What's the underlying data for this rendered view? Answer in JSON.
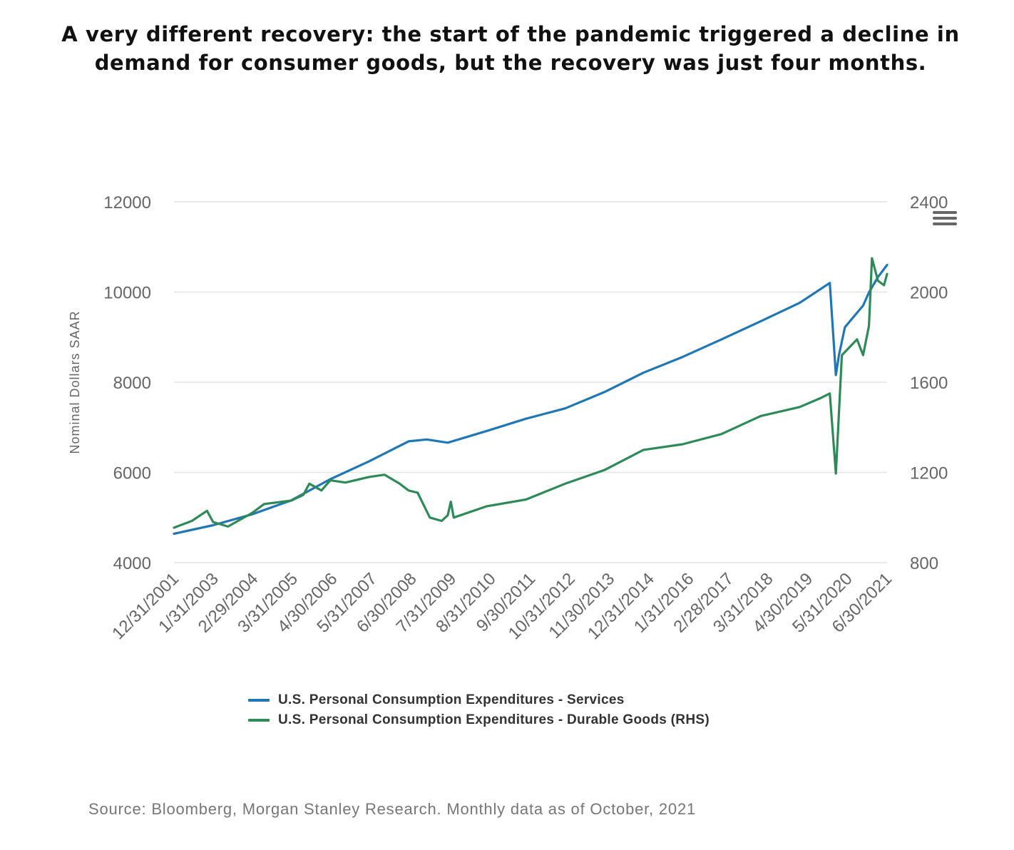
{
  "title_lines": [
    "A very different recovery: the start of the pandemic triggered a decline in",
    "demand for consumer goods, but the recovery was just four months."
  ],
  "source": "Source: Bloomberg, Morgan Stanley Research. Monthly data as of October, 2021",
  "menu_icon": "hamburger-menu-icon",
  "colors": {
    "services": "#1f77b4",
    "durables": "#2e8b57",
    "grid": "#e3e3e3",
    "axis_text": "#666666"
  },
  "chart_data": {
    "type": "line",
    "ylabel": "Nominal Dollars SAAR",
    "y_left": {
      "min": 4000,
      "max": 12000,
      "ticks": [
        4000,
        6000,
        8000,
        10000,
        12000
      ]
    },
    "y_right": {
      "min": 800,
      "max": 2400,
      "ticks": [
        800,
        1200,
        1600,
        2000,
        2400
      ]
    },
    "x_range": [
      "2001-12-31",
      "2021-09-30"
    ],
    "x_ticks": [
      "12/31/2001",
      "1/31/2003",
      "2/29/2004",
      "3/31/2005",
      "4/30/2006",
      "5/31/2007",
      "6/30/2008",
      "7/31/2009",
      "8/31/2010",
      "9/30/2011",
      "10/31/2012",
      "11/30/2013",
      "12/31/2014",
      "1/31/2016",
      "2/28/2017",
      "3/31/2018",
      "4/30/2019",
      "5/31/2020",
      "6/30/2021"
    ],
    "grid": true,
    "legend_position": "bottom",
    "series": [
      {
        "name": "U.S. Personal Consumption Expenditures - Services",
        "axis": "left",
        "points": [
          [
            "2001-12-31",
            4640
          ],
          [
            "2003-01-31",
            4830
          ],
          [
            "2004-02-29",
            5070
          ],
          [
            "2005-03-31",
            5380
          ],
          [
            "2006-04-30",
            5850
          ],
          [
            "2007-05-31",
            6250
          ],
          [
            "2008-06-30",
            6690
          ],
          [
            "2008-12-31",
            6730
          ],
          [
            "2009-07-31",
            6660
          ],
          [
            "2010-08-31",
            6920
          ],
          [
            "2011-09-30",
            7190
          ],
          [
            "2012-10-31",
            7420
          ],
          [
            "2013-11-30",
            7780
          ],
          [
            "2014-12-31",
            8210
          ],
          [
            "2016-01-31",
            8560
          ],
          [
            "2017-02-28",
            8950
          ],
          [
            "2018-03-31",
            9350
          ],
          [
            "2019-04-30",
            9760
          ],
          [
            "2020-02-29",
            10200
          ],
          [
            "2020-04-30",
            8160
          ],
          [
            "2020-05-31",
            8600
          ],
          [
            "2020-07-31",
            9220
          ],
          [
            "2020-12-31",
            9620
          ],
          [
            "2021-01-31",
            9700
          ],
          [
            "2021-03-31",
            9990
          ],
          [
            "2021-06-30",
            10330
          ],
          [
            "2021-09-30",
            10600
          ]
        ]
      },
      {
        "name": "U.S. Personal Consumption Expenditures - Durable Goods (RHS)",
        "axis": "right",
        "points": [
          [
            "2001-12-31",
            955
          ],
          [
            "2002-06-30",
            985
          ],
          [
            "2002-11-30",
            1030
          ],
          [
            "2003-01-31",
            980
          ],
          [
            "2003-06-30",
            960
          ],
          [
            "2004-02-29",
            1020
          ],
          [
            "2004-06-30",
            1060
          ],
          [
            "2005-03-31",
            1075
          ],
          [
            "2005-07-31",
            1100
          ],
          [
            "2005-09-30",
            1150
          ],
          [
            "2006-01-31",
            1120
          ],
          [
            "2006-04-30",
            1165
          ],
          [
            "2006-09-30",
            1155
          ],
          [
            "2007-05-31",
            1180
          ],
          [
            "2007-10-31",
            1190
          ],
          [
            "2008-03-31",
            1150
          ],
          [
            "2008-06-30",
            1120
          ],
          [
            "2008-09-30",
            1110
          ],
          [
            "2009-01-31",
            1000
          ],
          [
            "2009-05-31",
            985
          ],
          [
            "2009-07-31",
            1010
          ],
          [
            "2009-08-31",
            1070
          ],
          [
            "2009-09-30",
            1000
          ],
          [
            "2010-08-31",
            1050
          ],
          [
            "2011-09-30",
            1080
          ],
          [
            "2012-10-31",
            1150
          ],
          [
            "2013-11-30",
            1210
          ],
          [
            "2014-12-31",
            1300
          ],
          [
            "2016-01-31",
            1325
          ],
          [
            "2017-02-28",
            1370
          ],
          [
            "2018-03-31",
            1450
          ],
          [
            "2019-04-30",
            1490
          ],
          [
            "2019-11-30",
            1530
          ],
          [
            "2020-02-29",
            1550
          ],
          [
            "2020-04-30",
            1195
          ],
          [
            "2020-06-30",
            1720
          ],
          [
            "2020-11-30",
            1790
          ],
          [
            "2021-01-31",
            1720
          ],
          [
            "2021-03-31",
            1850
          ],
          [
            "2021-04-30",
            2150
          ],
          [
            "2021-06-30",
            2050
          ],
          [
            "2021-08-30",
            2030
          ],
          [
            "2021-09-30",
            2080
          ]
        ]
      }
    ]
  }
}
